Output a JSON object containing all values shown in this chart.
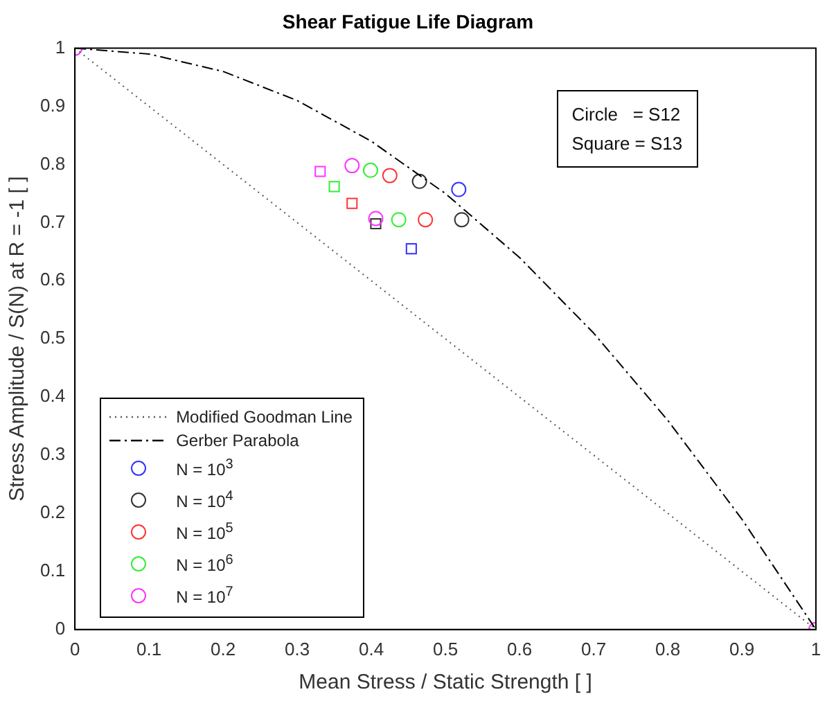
{
  "chart_data": {
    "type": "scatter",
    "title": "Shear Fatigue Life Diagram",
    "xlabel": "Mean Stress / Static Strength [ ]",
    "ylabel": "Stress Amplitude / S(N) at R = -1 [ ]",
    "xlim": [
      0,
      1
    ],
    "ylim": [
      0,
      1
    ],
    "xticks": [
      0,
      0.1,
      0.2,
      0.3,
      0.4,
      0.5,
      0.6,
      0.7,
      0.8,
      0.9,
      1
    ],
    "yticks": [
      0,
      0.1,
      0.2,
      0.3,
      0.4,
      0.5,
      0.6,
      0.7,
      0.8,
      0.9,
      1
    ],
    "grid": false,
    "legend": "bottom left",
    "annotations": [
      "Circle   = S12",
      "Square = S13"
    ],
    "series": [
      {
        "name": "Modified Goodman Line",
        "type": "line",
        "color": "#555555",
        "line_style": "dotted",
        "x": [
          0,
          1
        ],
        "values": [
          1,
          0
        ]
      },
      {
        "name": "Gerber Parabola",
        "type": "line",
        "color": "#000000",
        "line_style": "dashdot",
        "x": [
          0,
          0.1,
          0.2,
          0.3,
          0.4,
          0.5,
          0.6,
          0.7,
          0.8,
          0.9,
          1
        ],
        "values": [
          1,
          0.99,
          0.96,
          0.91,
          0.84,
          0.75,
          0.64,
          0.51,
          0.36,
          0.19,
          0
        ]
      },
      {
        "name": "N = 10$^{3}$",
        "type": "scatter",
        "color": "#3333ff",
        "marker": "circle",
        "x": [
          0.518
        ],
        "values": [
          0.757
        ]
      },
      {
        "name": "N = 10$^{4}$",
        "type": "scatter",
        "color": "#333333",
        "marker": "circle",
        "x": [
          0.465,
          0.522
        ],
        "values": [
          0.771,
          0.705
        ]
      },
      {
        "name": "N = 10$^{5}$",
        "type": "scatter",
        "color": "#ff3333",
        "marker": "circle",
        "x": [
          0.425,
          0.473
        ],
        "values": [
          0.781,
          0.705
        ]
      },
      {
        "name": "N = 10$^{6}$",
        "type": "scatter",
        "color": "#33ee33",
        "marker": "circle",
        "x": [
          0.399,
          0.437
        ],
        "values": [
          0.79,
          0.705
        ]
      },
      {
        "name": "N = 10$^{7}$",
        "type": "scatter",
        "color": "#ff33ff",
        "marker": "circle",
        "x": [
          0,
          0.374,
          0.406,
          1
        ],
        "values": [
          1,
          0.798,
          0.707,
          0
        ]
      },
      {
        "type": "scatter",
        "color": "#3333ff",
        "marker": "square",
        "x": [
          0.454
        ],
        "values": [
          0.655
        ]
      },
      {
        "type": "scatter",
        "color": "#333333",
        "marker": "square",
        "x": [
          0.406
        ],
        "values": [
          0.698
        ]
      },
      {
        "type": "scatter",
        "color": "#ff3333",
        "marker": "square",
        "x": [
          0.374
        ],
        "values": [
          0.733
        ]
      },
      {
        "type": "scatter",
        "color": "#33ee33",
        "marker": "square",
        "x": [
          0.35
        ],
        "values": [
          0.762
        ]
      },
      {
        "type": "scatter",
        "color": "#ff33ff",
        "marker": "square",
        "x": [
          0.331
        ],
        "values": [
          0.788
        ]
      }
    ]
  }
}
